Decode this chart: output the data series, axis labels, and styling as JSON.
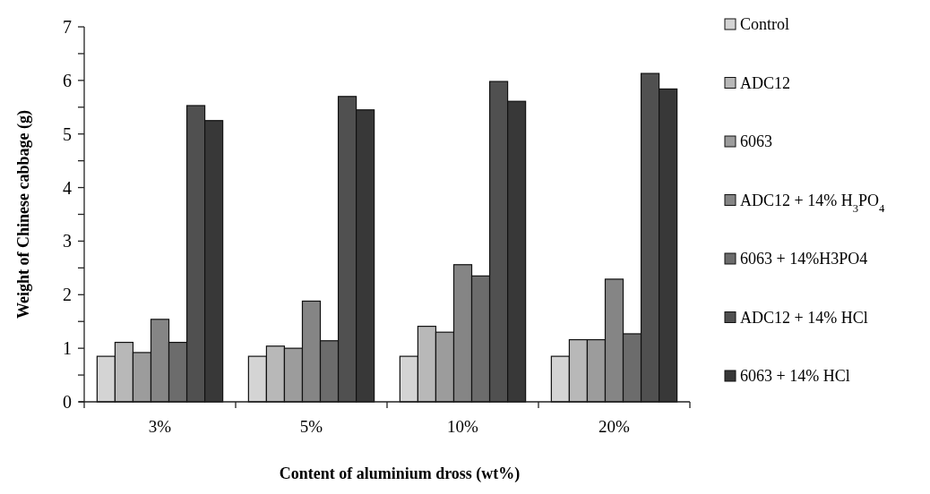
{
  "chart_data": {
    "type": "bar",
    "xlabel": "Content of aluminium dross (wt%)",
    "ylabel": "Weight of Chinese cabbage (g)",
    "categories": [
      "3%",
      "5%",
      "10%",
      "20%"
    ],
    "series": [
      {
        "name": "Control",
        "color": "#d4d4d4",
        "values": [
          0.85,
          0.85,
          0.85,
          0.85
        ]
      },
      {
        "name": "ADC12",
        "color": "#b8b8b8",
        "values": [
          1.11,
          1.04,
          1.41,
          1.16
        ]
      },
      {
        "name": "6063",
        "color": "#9c9c9c",
        "values": [
          0.92,
          1.0,
          1.3,
          1.16
        ]
      },
      {
        "name": "ADC12 + 14% H$_{3}$PO$_{4}$",
        "color": "#858585",
        "values": [
          1.54,
          1.88,
          2.56,
          2.29
        ]
      },
      {
        "name": "6063 + 14%H3PO4",
        "color": "#6c6c6c",
        "values": [
          1.11,
          1.14,
          2.35,
          1.27
        ]
      },
      {
        "name": "ADC12 + 14% HCl",
        "color": "#505050",
        "values": [
          5.53,
          5.7,
          5.98,
          6.13
        ]
      },
      {
        "name": "6063 + 14% HCl",
        "color": "#383838",
        "values": [
          5.25,
          5.45,
          5.61,
          5.84
        ]
      }
    ],
    "ylim": [
      0,
      7
    ],
    "yticks": [
      0,
      {
        "value": 0.5,
        "label": null
      },
      1,
      {
        "value": 1.5,
        "label": null
      },
      2,
      {
        "value": 2.5,
        "label": null
      },
      3,
      {
        "value": 3.5,
        "label": null
      },
      4,
      {
        "value": 4.5,
        "label": null
      },
      5,
      {
        "value": 5.5,
        "label": null
      },
      6,
      {
        "value": 6.5,
        "label": null
      },
      7
    ],
    "legend": "right"
  }
}
